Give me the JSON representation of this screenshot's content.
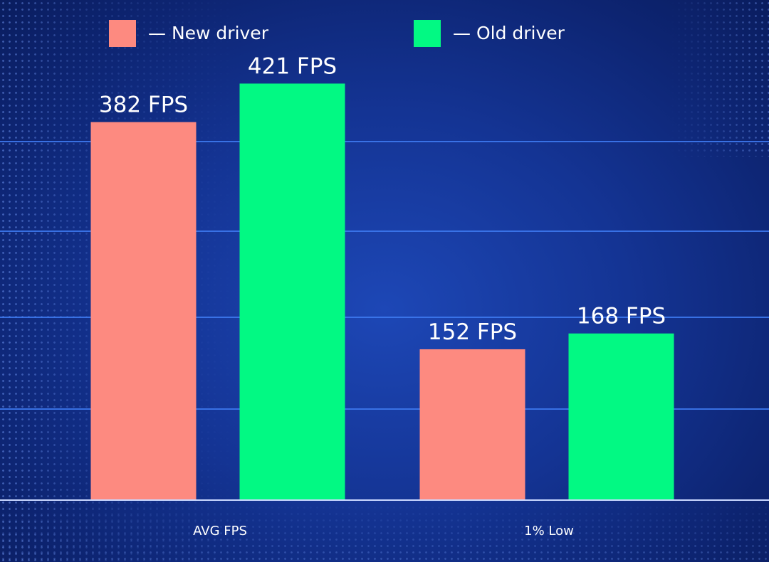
{
  "chart_data": {
    "type": "bar",
    "categories": [
      "AVG FPS",
      "1% Low"
    ],
    "series": [
      {
        "name": "— New driver",
        "color": "#fd8a80",
        "values": [
          382,
          152
        ],
        "labels": [
          "382 FPS",
          "152 FPS"
        ]
      },
      {
        "name": "— Old driver",
        "color": "#02f983",
        "values": [
          421,
          168
        ],
        "labels": [
          "421 FPS",
          "168 FPS"
        ]
      }
    ],
    "ylim": [
      0,
      484
    ],
    "grid": true,
    "legend": "top"
  }
}
